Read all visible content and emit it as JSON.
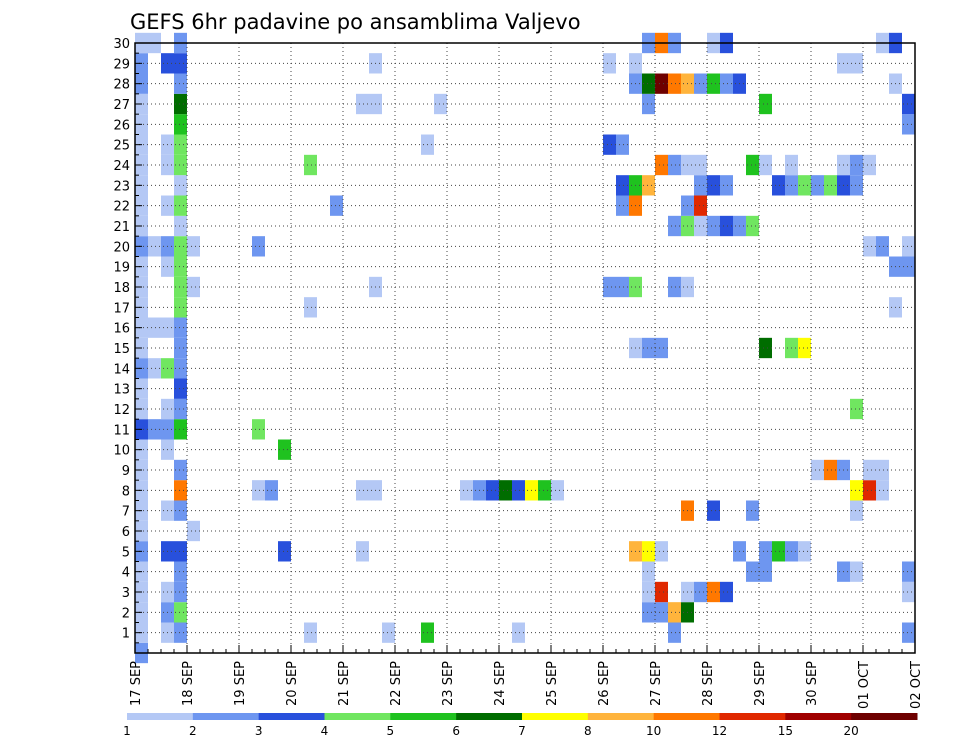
{
  "chart_data": {
    "type": "heatmap",
    "title": "GEFS 6hr padavine po ansamblima Valjevo",
    "xlabel": "",
    "ylabel": "",
    "x_axis": {
      "unit": "6h step",
      "range_steps": [
        0,
        60
      ],
      "ticks": [
        {
          "step": 0,
          "label": "17 SEP"
        },
        {
          "step": 4,
          "label": "18 SEP"
        },
        {
          "step": 8,
          "label": "19 SEP"
        },
        {
          "step": 12,
          "label": "20 SEP"
        },
        {
          "step": 16,
          "label": "21 SEP"
        },
        {
          "step": 20,
          "label": "22 SEP"
        },
        {
          "step": 24,
          "label": "23 SEP"
        },
        {
          "step": 28,
          "label": "24 SEP"
        },
        {
          "step": 32,
          "label": "25 SEP"
        },
        {
          "step": 36,
          "label": "26 SEP"
        },
        {
          "step": 40,
          "label": "27 SEP"
        },
        {
          "step": 44,
          "label": "28 SEP"
        },
        {
          "step": 48,
          "label": "29 SEP"
        },
        {
          "step": 52,
          "label": "30 SEP"
        },
        {
          "step": 56,
          "label": "01 OCT"
        },
        {
          "step": 60,
          "label": "02 OCT"
        }
      ]
    },
    "y_axis": {
      "range": [
        0,
        30
      ],
      "ticks": [
        1,
        2,
        3,
        4,
        5,
        6,
        7,
        8,
        9,
        10,
        11,
        12,
        13,
        14,
        15,
        16,
        17,
        18,
        19,
        20,
        21,
        22,
        23,
        24,
        25,
        26,
        27,
        28,
        29,
        30
      ]
    },
    "grid": true,
    "legend": {
      "position": "bottom",
      "colors": [
        "#b4c8f5",
        "#6e96f0",
        "#2850dc",
        "#70e660",
        "#1fc21f",
        "#006d00",
        "#ffff00",
        "#ffb43c",
        "#ff7800",
        "#e02800",
        "#a00000",
        "#6e0000"
      ],
      "labels": [
        "1",
        "2",
        "3",
        "4",
        "5",
        "6",
        "7",
        "8",
        "10",
        "12",
        "15",
        "20"
      ]
    },
    "cells_by_member": {
      "30": [
        [
          0,
          1,
          1
        ],
        [
          1,
          1,
          1
        ],
        [
          3,
          1,
          2
        ],
        [
          39,
          1,
          2
        ],
        [
          40,
          1,
          10
        ],
        [
          41,
          1,
          2
        ],
        [
          44,
          1,
          1
        ],
        [
          45,
          1,
          3
        ],
        [
          57,
          1,
          1
        ],
        [
          58,
          1,
          3
        ]
      ],
      "29": [
        [
          0,
          1,
          2
        ],
        [
          2,
          2,
          3
        ],
        [
          18,
          1,
          1
        ],
        [
          36,
          1,
          1
        ],
        [
          38,
          1,
          1
        ],
        [
          54,
          2,
          1
        ]
      ],
      "28": [
        [
          0,
          1,
          2
        ],
        [
          3,
          1,
          2
        ],
        [
          38,
          1,
          2
        ],
        [
          39,
          1,
          6
        ],
        [
          40,
          1,
          20
        ],
        [
          41,
          1,
          10
        ],
        [
          42,
          1,
          8
        ],
        [
          43,
          1,
          2
        ],
        [
          44,
          1,
          5
        ],
        [
          45,
          1,
          2
        ],
        [
          46,
          1,
          3
        ],
        [
          58,
          1,
          1
        ]
      ],
      "27": [
        [
          0,
          1,
          1
        ],
        [
          3,
          1,
          6
        ],
        [
          17,
          2,
          1
        ],
        [
          23,
          1,
          1
        ],
        [
          39,
          1,
          2
        ],
        [
          48,
          1,
          5
        ],
        [
          59,
          1,
          3
        ]
      ],
      "26": [
        [
          0,
          1,
          1
        ],
        [
          3,
          1,
          5
        ],
        [
          59,
          1,
          2
        ]
      ],
      "25": [
        [
          0,
          1,
          1
        ],
        [
          2,
          1,
          1
        ],
        [
          3,
          1,
          4
        ],
        [
          22,
          1,
          1
        ],
        [
          36,
          1,
          3
        ],
        [
          37,
          1,
          2
        ]
      ],
      "24": [
        [
          0,
          1,
          1
        ],
        [
          2,
          1,
          1
        ],
        [
          3,
          1,
          4
        ],
        [
          13,
          1,
          4
        ],
        [
          40,
          1,
          10
        ],
        [
          41,
          1,
          2
        ],
        [
          42,
          2,
          1
        ],
        [
          47,
          1,
          5
        ],
        [
          48,
          1,
          1
        ],
        [
          50,
          1,
          1
        ],
        [
          54,
          1,
          1
        ],
        [
          55,
          1,
          2
        ],
        [
          56,
          1,
          1
        ]
      ],
      "23": [
        [
          0,
          1,
          1
        ],
        [
          3,
          1,
          1
        ],
        [
          37,
          1,
          3
        ],
        [
          38,
          1,
          5
        ],
        [
          39,
          1,
          8
        ],
        [
          43,
          1,
          2
        ],
        [
          44,
          1,
          3
        ],
        [
          45,
          1,
          2
        ],
        [
          49,
          1,
          3
        ],
        [
          50,
          1,
          2
        ],
        [
          51,
          1,
          4
        ],
        [
          52,
          1,
          2
        ],
        [
          53,
          1,
          4
        ],
        [
          54,
          1,
          3
        ],
        [
          55,
          1,
          2
        ]
      ],
      "22": [
        [
          0,
          1,
          1
        ],
        [
          2,
          1,
          1
        ],
        [
          3,
          1,
          4
        ],
        [
          15,
          1,
          2
        ],
        [
          37,
          1,
          2
        ],
        [
          38,
          1,
          10
        ],
        [
          42,
          1,
          2
        ],
        [
          43,
          1,
          12
        ]
      ],
      "21": [
        [
          0,
          1,
          1
        ],
        [
          3,
          1,
          1
        ],
        [
          41,
          1,
          2
        ],
        [
          42,
          1,
          4
        ],
        [
          43,
          1,
          1
        ],
        [
          44,
          1,
          2
        ],
        [
          45,
          1,
          3
        ],
        [
          46,
          1,
          2
        ],
        [
          47,
          1,
          4
        ]
      ],
      "20": [
        [
          0,
          1,
          2
        ],
        [
          1,
          1,
          1
        ],
        [
          2,
          1,
          2
        ],
        [
          3,
          1,
          4
        ],
        [
          4,
          1,
          1
        ],
        [
          9,
          1,
          2
        ],
        [
          56,
          1,
          1
        ],
        [
          57,
          1,
          2
        ],
        [
          59,
          1,
          1
        ]
      ],
      "19": [
        [
          0,
          1,
          1
        ],
        [
          2,
          1,
          1
        ],
        [
          3,
          1,
          4
        ],
        [
          58,
          2,
          2
        ]
      ],
      "18": [
        [
          0,
          1,
          1
        ],
        [
          3,
          1,
          4
        ],
        [
          4,
          1,
          1
        ],
        [
          18,
          1,
          1
        ],
        [
          36,
          2,
          2
        ],
        [
          38,
          1,
          4
        ],
        [
          41,
          1,
          2
        ],
        [
          42,
          1,
          1
        ]
      ],
      "17": [
        [
          0,
          1,
          1
        ],
        [
          3,
          1,
          4
        ],
        [
          13,
          1,
          1
        ],
        [
          58,
          1,
          1
        ]
      ],
      "16": [
        [
          0,
          3,
          1
        ],
        [
          3,
          1,
          2
        ]
      ],
      "15": [
        [
          0,
          1,
          1
        ],
        [
          3,
          1,
          2
        ],
        [
          38,
          1,
          1
        ],
        [
          39,
          2,
          2
        ],
        [
          48,
          1,
          6
        ],
        [
          50,
          1,
          4
        ],
        [
          51,
          1,
          7
        ]
      ],
      "14": [
        [
          0,
          1,
          2
        ],
        [
          1,
          1,
          1
        ],
        [
          2,
          1,
          4
        ],
        [
          3,
          1,
          2
        ]
      ],
      "13": [
        [
          0,
          1,
          1
        ],
        [
          3,
          1,
          3
        ]
      ],
      "12": [
        [
          0,
          1,
          1
        ],
        [
          2,
          1,
          1
        ],
        [
          3,
          1,
          2
        ],
        [
          55,
          1,
          4
        ]
      ],
      "11": [
        [
          0,
          1,
          3
        ],
        [
          1,
          1,
          2
        ],
        [
          2,
          1,
          2
        ],
        [
          3,
          1,
          5
        ],
        [
          9,
          1,
          4
        ]
      ],
      "10": [
        [
          0,
          1,
          1
        ],
        [
          2,
          1,
          1
        ],
        [
          11,
          1,
          5
        ]
      ],
      "9": [
        [
          0,
          1,
          1
        ],
        [
          3,
          1,
          2
        ],
        [
          52,
          1,
          1
        ],
        [
          53,
          1,
          10
        ],
        [
          54,
          1,
          2
        ],
        [
          56,
          2,
          1
        ]
      ],
      "8": [
        [
          0,
          1,
          1
        ],
        [
          3,
          1,
          10
        ],
        [
          9,
          1,
          1
        ],
        [
          10,
          1,
          2
        ],
        [
          17,
          2,
          1
        ],
        [
          25,
          1,
          1
        ],
        [
          26,
          1,
          2
        ],
        [
          27,
          1,
          3
        ],
        [
          28,
          1,
          6
        ],
        [
          29,
          1,
          3
        ],
        [
          30,
          1,
          7
        ],
        [
          31,
          1,
          5
        ],
        [
          32,
          1,
          1
        ],
        [
          55,
          1,
          7
        ],
        [
          56,
          1,
          12
        ],
        [
          57,
          1,
          1
        ]
      ],
      "7": [
        [
          0,
          1,
          1
        ],
        [
          2,
          1,
          1
        ],
        [
          3,
          1,
          2
        ],
        [
          42,
          1,
          10
        ],
        [
          44,
          1,
          3
        ],
        [
          47,
          1,
          2
        ],
        [
          55,
          1,
          1
        ]
      ],
      "6": [
        [
          0,
          1,
          1
        ],
        [
          4,
          1,
          1
        ]
      ],
      "5": [
        [
          0,
          1,
          2
        ],
        [
          2,
          1,
          3
        ],
        [
          3,
          1,
          3
        ],
        [
          11,
          1,
          3
        ],
        [
          17,
          1,
          1
        ],
        [
          38,
          1,
          8
        ],
        [
          39,
          1,
          7
        ],
        [
          40,
          1,
          1
        ],
        [
          46,
          1,
          2
        ],
        [
          48,
          1,
          2
        ],
        [
          49,
          1,
          5
        ],
        [
          50,
          1,
          2
        ],
        [
          51,
          1,
          1
        ]
      ],
      "4": [
        [
          0,
          1,
          1
        ],
        [
          3,
          1,
          2
        ],
        [
          39,
          1,
          1
        ],
        [
          47,
          2,
          2
        ],
        [
          54,
          1,
          2
        ],
        [
          55,
          1,
          1
        ],
        [
          59,
          1,
          2
        ]
      ],
      "3": [
        [
          0,
          1,
          1
        ],
        [
          2,
          1,
          1
        ],
        [
          3,
          1,
          2
        ],
        [
          39,
          1,
          1
        ],
        [
          40,
          1,
          12
        ],
        [
          42,
          1,
          1
        ],
        [
          43,
          1,
          2
        ],
        [
          44,
          1,
          10
        ],
        [
          45,
          1,
          3
        ],
        [
          59,
          1,
          1
        ]
      ],
      "2": [
        [
          0,
          1,
          1
        ],
        [
          2,
          1,
          2
        ],
        [
          3,
          1,
          4
        ],
        [
          39,
          2,
          2
        ],
        [
          41,
          1,
          8
        ],
        [
          42,
          1,
          6
        ]
      ],
      "1": [
        [
          0,
          1,
          1
        ],
        [
          2,
          1,
          1
        ],
        [
          3,
          1,
          2
        ],
        [
          13,
          1,
          1
        ],
        [
          19,
          1,
          1
        ],
        [
          22,
          1,
          5
        ],
        [
          29,
          1,
          1
        ],
        [
          41,
          1,
          2
        ],
        [
          59,
          1,
          2
        ]
      ],
      "0": [
        [
          0,
          1,
          2
        ]
      ]
    }
  }
}
